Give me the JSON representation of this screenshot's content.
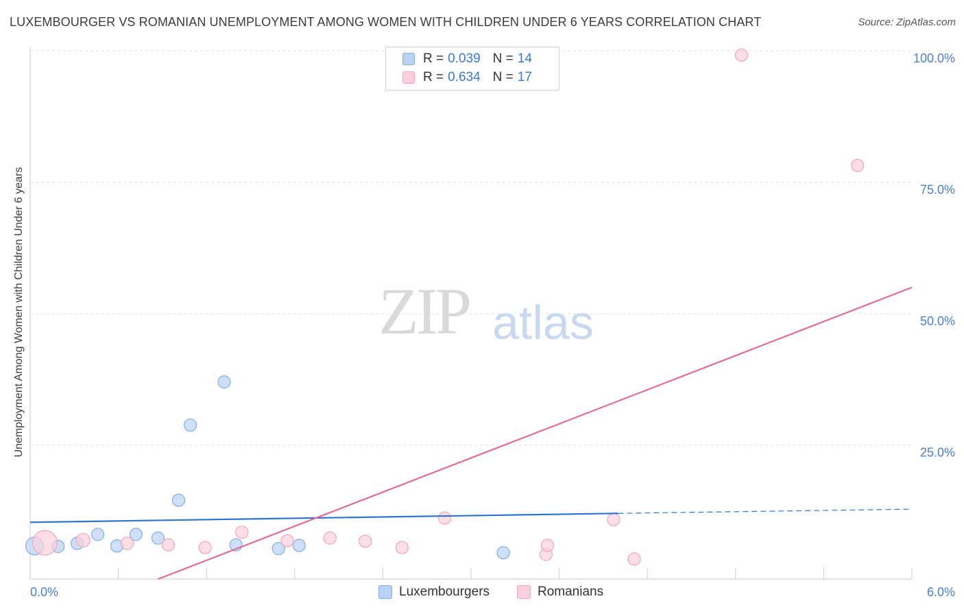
{
  "chart_data": {
    "type": "scatter",
    "title": "LUXEMBOURGER VS ROMANIAN UNEMPLOYMENT AMONG WOMEN WITH CHILDREN UNDER 6 YEARS CORRELATION CHART",
    "source": "Source: ZipAtlas.com",
    "xlabel": "",
    "ylabel": "Unemployment Among Women with Children Under 6 years",
    "xlim": [
      0,
      6
    ],
    "ylim": [
      0,
      100
    ],
    "x_tick_labels": [
      "0.0%",
      "6.0%"
    ],
    "y_ticks": [
      25,
      50,
      75,
      100
    ],
    "y_tick_labels": [
      "25.0%",
      "50.0%",
      "75.0%",
      "100.0%"
    ],
    "legend": [
      {
        "name": "Luxembourgers",
        "r_label": "R =",
        "r_value": "0.039",
        "n_label": "N =",
        "n_value": "14"
      },
      {
        "name": "Romanians",
        "r_label": "R =",
        "r_value": "0.634",
        "n_label": "N =",
        "n_value": "17"
      }
    ],
    "series": [
      {
        "name": "Luxembourgers",
        "color": "#7eaee8",
        "fill": "#b9d3f5",
        "points": [
          {
            "x": 0.03,
            "y": 6.3,
            "s": 13
          },
          {
            "x": 0.19,
            "y": 6.2,
            "s": 9
          },
          {
            "x": 0.32,
            "y": 6.8,
            "s": 9
          },
          {
            "x": 0.46,
            "y": 8.5,
            "s": 9
          },
          {
            "x": 0.59,
            "y": 6.3,
            "s": 9
          },
          {
            "x": 0.72,
            "y": 8.5,
            "s": 9
          },
          {
            "x": 0.87,
            "y": 7.8,
            "s": 9
          },
          {
            "x": 1.01,
            "y": 15.0,
            "s": 9
          },
          {
            "x": 1.09,
            "y": 29.3,
            "s": 9
          },
          {
            "x": 1.32,
            "y": 37.5,
            "s": 9
          },
          {
            "x": 1.4,
            "y": 6.5,
            "s": 9
          },
          {
            "x": 1.69,
            "y": 5.8,
            "s": 9
          },
          {
            "x": 1.83,
            "y": 6.4,
            "s": 9
          },
          {
            "x": 3.22,
            "y": 5.0,
            "s": 9
          }
        ],
        "trend": {
          "x0": 0,
          "y0": 10.8,
          "x1": 4.0,
          "y1": 12.5,
          "dash_x1": 6.0,
          "dash_y1": 13.3,
          "color": "#2f74d0"
        }
      },
      {
        "name": "Romanians",
        "color": "#f2a4bb",
        "fill": "#fbd0dc",
        "points": [
          {
            "x": 0.1,
            "y": 6.9,
            "s": 18
          },
          {
            "x": 0.36,
            "y": 7.4,
            "s": 10
          },
          {
            "x": 0.66,
            "y": 6.8,
            "s": 9
          },
          {
            "x": 0.94,
            "y": 6.5,
            "s": 9
          },
          {
            "x": 1.19,
            "y": 6.0,
            "s": 9
          },
          {
            "x": 1.44,
            "y": 8.9,
            "s": 9
          },
          {
            "x": 1.75,
            "y": 7.3,
            "s": 9
          },
          {
            "x": 2.04,
            "y": 7.8,
            "s": 9
          },
          {
            "x": 2.28,
            "y": 7.2,
            "s": 9
          },
          {
            "x": 2.53,
            "y": 6.0,
            "s": 9
          },
          {
            "x": 2.82,
            "y": 11.6,
            "s": 9
          },
          {
            "x": 3.51,
            "y": 4.7,
            "s": 9
          },
          {
            "x": 3.52,
            "y": 6.4,
            "s": 9
          },
          {
            "x": 3.97,
            "y": 11.3,
            "s": 9
          },
          {
            "x": 4.11,
            "y": 3.8,
            "s": 9
          },
          {
            "x": 4.84,
            "y": 99.7,
            "s": 9
          },
          {
            "x": 5.63,
            "y": 78.7,
            "s": 9
          }
        ],
        "trend": {
          "x0": 0.87,
          "y0": 0,
          "x1": 6.0,
          "y1": 55.5,
          "color": "#e36b96"
        }
      }
    ],
    "grid": true,
    "legend_position": "top-center"
  },
  "watermark": {
    "zip": "ZIP",
    "atlas": "atlas"
  }
}
